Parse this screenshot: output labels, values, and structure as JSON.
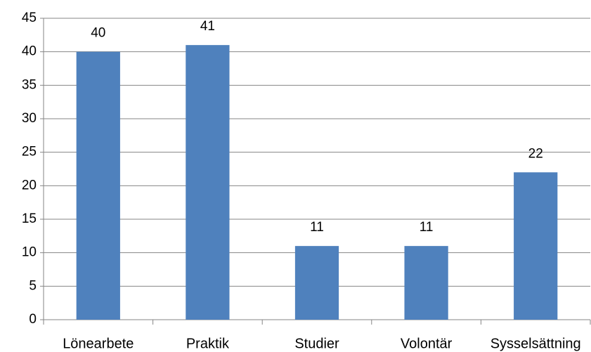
{
  "chart_data": {
    "type": "bar",
    "categories": [
      "Lönearbete",
      "Praktik",
      "Studier",
      "Volontär",
      "Sysselsättning"
    ],
    "values": [
      40,
      41,
      11,
      11,
      22
    ],
    "color": "#4f81bd",
    "ylim": [
      0,
      45
    ],
    "yticks": [
      0,
      5,
      10,
      15,
      20,
      25,
      30,
      35,
      40,
      45
    ],
    "grid": true
  }
}
